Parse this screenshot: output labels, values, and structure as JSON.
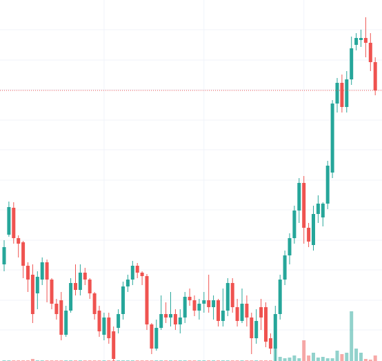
{
  "chart_data": {
    "type": "candlestick",
    "up_color": "#26a69a",
    "down_color": "#ef5350",
    "grid": true,
    "grid_color": "#f0f3fa",
    "last_price_line": true,
    "ylim": [
      0,
      523
    ],
    "yticks": [
      45,
      88,
      132,
      175,
      219,
      262,
      306,
      349,
      393,
      436,
      480
    ],
    "xticks": [
      21,
      42,
      63
    ],
    "volume_ylim": [
      0,
      523
    ],
    "open": [
      140,
      183,
      222,
      178,
      172,
      138,
      125,
      98,
      118,
      143,
      118,
      83,
      88,
      38,
      73,
      113,
      103,
      128,
      118,
      98,
      73,
      38,
      63,
      43,
      48,
      68,
      108,
      118,
      138,
      128,
      123,
      53,
      18,
      48,
      68,
      63,
      68,
      53,
      63,
      93,
      88,
      73,
      83,
      88,
      78,
      88,
      58,
      73,
      113,
      78,
      58,
      83,
      63,
      33,
      78,
      78,
      33,
      18,
      68,
      118,
      153,
      178,
      218,
      258,
      193,
      168,
      213,
      208,
      228,
      273,
      373,
      403,
      368,
      408,
      458,
      465,
      468,
      461,
      433
    ],
    "high": [
      175,
      231,
      230,
      182,
      174,
      143,
      140,
      130,
      150,
      147,
      120,
      90,
      100,
      80,
      120,
      140,
      140,
      135,
      120,
      100,
      80,
      70,
      70,
      50,
      75,
      115,
      125,
      145,
      142,
      130,
      126,
      55,
      60,
      95,
      85,
      100,
      75,
      75,
      100,
      105,
      95,
      90,
      100,
      125,
      95,
      90,
      105,
      120,
      120,
      90,
      105,
      95,
      70,
      75,
      90,
      85,
      40,
      80,
      125,
      160,
      185,
      225,
      265,
      268,
      200,
      225,
      240,
      230,
      290,
      378,
      410,
      415,
      420,
      470,
      475,
      480,
      498,
      475,
      440
    ],
    "low": [
      130,
      180,
      170,
      150,
      120,
      100,
      55,
      75,
      110,
      85,
      75,
      60,
      30,
      35,
      70,
      95,
      95,
      110,
      90,
      60,
      35,
      30,
      25,
      0,
      40,
      60,
      100,
      110,
      120,
      110,
      45,
      10,
      15,
      45,
      55,
      50,
      45,
      40,
      55,
      80,
      65,
      60,
      70,
      70,
      60,
      50,
      50,
      65,
      70,
      50,
      55,
      50,
      10,
      25,
      45,
      20,
      10,
      0,
      60,
      110,
      140,
      170,
      200,
      170,
      165,
      160,
      200,
      195,
      220,
      265,
      360,
      360,
      360,
      400,
      450,
      455,
      440,
      420,
      385
    ],
    "close": [
      165,
      223,
      178,
      170,
      138,
      118,
      68,
      122,
      143,
      118,
      83,
      68,
      38,
      73,
      113,
      103,
      128,
      118,
      98,
      68,
      43,
      63,
      33,
      3,
      68,
      108,
      118,
      138,
      128,
      123,
      53,
      18,
      48,
      68,
      63,
      68,
      53,
      63,
      93,
      88,
      73,
      83,
      88,
      78,
      88,
      58,
      73,
      113,
      78,
      58,
      83,
      63,
      33,
      58,
      63,
      28,
      18,
      68,
      118,
      153,
      178,
      218,
      258,
      193,
      173,
      213,
      228,
      228,
      283,
      373,
      403,
      368,
      408,
      453,
      468,
      468,
      461,
      433,
      392
    ],
    "volumes": [
      1,
      1,
      1,
      1,
      1,
      1,
      3,
      1,
      1,
      1,
      1,
      1,
      1,
      1,
      1,
      1,
      1,
      1,
      1,
      1,
      1,
      1,
      1,
      1,
      1,
      1,
      1,
      1,
      1,
      1,
      1,
      1,
      1,
      1,
      1,
      1,
      1,
      1,
      1,
      1,
      1,
      1,
      1,
      1,
      1,
      1,
      1,
      1,
      1,
      1,
      1,
      1,
      1,
      1,
      1,
      1,
      1,
      18,
      6,
      4,
      5,
      8,
      4,
      30,
      8,
      12,
      5,
      6,
      4,
      4,
      15,
      10,
      12,
      72,
      18,
      12,
      3,
      2,
      8
    ]
  }
}
